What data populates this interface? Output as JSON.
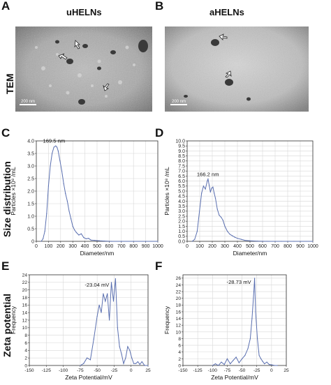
{
  "panels": {
    "A": {
      "letter": "A",
      "title": "uHELNs",
      "scale_text": "200 nm"
    },
    "B": {
      "letter": "B",
      "title": "aHELNs",
      "scale_text": "200 nm"
    },
    "C": {
      "letter": "C"
    },
    "D": {
      "letter": "D"
    },
    "E": {
      "letter": "E"
    },
    "F": {
      "letter": "F"
    }
  },
  "row_labels": {
    "tem": "TEM",
    "size": "Size distribution",
    "zeta": "Zeta potential"
  },
  "colors": {
    "line": "#5a6fb0",
    "grid": "#d8d8d8",
    "axis": "#333333"
  },
  "chart_data": [
    {
      "id": "C",
      "type": "line",
      "xlabel": "Diameter/nm",
      "ylabel": "Particles ×10⁸ /mL",
      "xlim": [
        0,
        1000
      ],
      "ylim": [
        0,
        4.0
      ],
      "xticks": [
        0,
        100,
        200,
        300,
        400,
        500,
        600,
        700,
        800,
        900,
        1000
      ],
      "xtick_labels": [
        "0",
        "100",
        "200",
        "300",
        "400",
        "500",
        "600",
        "700",
        "800",
        "900",
        "1000"
      ],
      "yticks": [
        0,
        0.5,
        1.0,
        1.5,
        2.0,
        2.5,
        3.0,
        3.5,
        4.0
      ],
      "ytick_labels": [
        "0",
        "0.5",
        "1.0",
        "1.5",
        "2.0",
        "2.5",
        "3.0",
        "3.5",
        "4.0"
      ],
      "annotation": "169.5 nm",
      "annotation_at": [
        169.5,
        3.82
      ],
      "x": [
        40,
        55,
        70,
        85,
        100,
        115,
        130,
        145,
        160,
        170,
        180,
        195,
        210,
        225,
        240,
        255,
        270,
        285,
        300,
        315,
        330,
        350,
        370,
        390,
        410,
        430,
        450,
        480,
        520,
        560,
        620,
        700,
        800,
        900,
        1000
      ],
      "y": [
        0.0,
        0.1,
        0.4,
        1.1,
        2.2,
        3.0,
        3.5,
        3.75,
        3.8,
        3.75,
        3.6,
        3.2,
        2.8,
        2.3,
        1.9,
        1.6,
        1.2,
        0.9,
        0.6,
        0.45,
        0.35,
        0.25,
        0.3,
        0.15,
        0.1,
        0.12,
        0.05,
        0.04,
        0.02,
        0.01,
        0.0,
        0.0,
        0.0,
        0.0,
        0.0
      ]
    },
    {
      "id": "D",
      "type": "line",
      "xlabel": "Diameter/nm",
      "ylabel": "Particles ×10⁸ /mL",
      "xlim": [
        0,
        1000
      ],
      "ylim": [
        0,
        10.0
      ],
      "xticks": [
        0,
        100,
        200,
        300,
        400,
        500,
        600,
        700,
        800,
        900,
        1000
      ],
      "xtick_labels": [
        "0",
        "100",
        "200",
        "300",
        "400",
        "500",
        "600",
        "700",
        "800",
        "900",
        "1000"
      ],
      "yticks": [
        0,
        0.5,
        1.0,
        1.5,
        2.0,
        2.5,
        3.0,
        3.5,
        4.0,
        4.5,
        5.0,
        5.5,
        6.0,
        6.5,
        7.0,
        7.5,
        8.0,
        8.5,
        9.0,
        9.5,
        10.0
      ],
      "ytick_labels": [
        "0.0",
        "0.5",
        "1.0",
        "1.5",
        "2.0",
        "2.5",
        "3.0",
        "3.5",
        "4.0",
        "4.5",
        "5.0",
        "5.5",
        "6.0",
        "6.5",
        "7.0",
        "7.5",
        "8.0",
        "8.5",
        "9.0",
        "9.5",
        "10.0"
      ],
      "annotation": "166.2 nm",
      "annotation_at": [
        166.2,
        6.2
      ],
      "x": [
        40,
        60,
        80,
        100,
        115,
        130,
        145,
        160,
        166,
        175,
        185,
        195,
        205,
        215,
        225,
        240,
        255,
        270,
        285,
        300,
        320,
        340,
        360,
        380,
        400,
        430,
        460,
        500,
        560,
        650,
        750,
        850,
        1000
      ],
      "y": [
        0.0,
        0.2,
        1.0,
        3.2,
        4.8,
        5.5,
        5.2,
        6.0,
        6.2,
        5.6,
        4.9,
        5.3,
        5.4,
        4.8,
        4.3,
        3.2,
        2.6,
        2.4,
        2.1,
        1.5,
        1.0,
        0.7,
        0.55,
        0.4,
        0.3,
        0.2,
        0.1,
        0.05,
        0.02,
        0.0,
        0.0,
        0.0,
        0.0
      ]
    },
    {
      "id": "E",
      "type": "line",
      "xlabel": "Zeta Potential/mV",
      "ylabel": "Frequency",
      "xlim": [
        -150,
        25
      ],
      "ylim": [
        0,
        24
      ],
      "xticks": [
        -150,
        -125,
        -100,
        -75,
        -50,
        -25,
        0,
        25
      ],
      "xtick_labels": [
        "-150",
        "-125",
        "-100",
        "-75",
        "-50",
        "-25",
        "0",
        "25"
      ],
      "yticks": [
        0,
        2,
        4,
        6,
        8,
        10,
        12,
        14,
        16,
        18,
        20,
        22,
        24
      ],
      "ytick_labels": [
        "0",
        "2",
        "4",
        "6",
        "8",
        "10",
        "12",
        "14",
        "16",
        "18",
        "20",
        "22",
        "24"
      ],
      "annotation": "-23.04 mV",
      "annotation_at": [
        -23.04,
        22.3
      ],
      "x": [
        -75,
        -70,
        -65,
        -60,
        -55,
        -50,
        -47,
        -44,
        -41,
        -38,
        -35,
        -32,
        -29,
        -26,
        -23,
        -20,
        -17,
        -14,
        -11,
        -8,
        -5,
        -2,
        1,
        4,
        7,
        10,
        13,
        16,
        20,
        25
      ],
      "y": [
        0,
        0.5,
        2,
        1.5,
        7,
        13,
        16,
        14,
        19,
        17,
        19,
        12,
        22,
        17,
        23,
        10,
        5,
        3,
        0.5,
        2,
        5,
        4,
        2,
        0.5,
        0.5,
        1,
        0.3,
        1,
        0,
        0
      ]
    },
    {
      "id": "F",
      "type": "line",
      "xlabel": "Zeta Potential/mV",
      "ylabel": "Frequency",
      "xlim": [
        -150,
        25
      ],
      "ylim": [
        0,
        27
      ],
      "xticks": [
        -150,
        -125,
        -100,
        -75,
        -50,
        -25,
        0,
        25
      ],
      "xtick_labels": [
        "-150",
        "-125",
        "-100",
        "-75",
        "-50",
        "-25",
        "0",
        "25"
      ],
      "yticks": [
        0,
        2,
        4,
        6,
        8,
        10,
        12,
        14,
        16,
        18,
        20,
        22,
        24,
        26
      ],
      "ytick_labels": [
        "0",
        "2",
        "4",
        "6",
        "8",
        "10",
        "12",
        "14",
        "16",
        "18",
        "20",
        "22",
        "24",
        "26"
      ],
      "annotation": "-28.73 mV",
      "annotation_at": [
        -28.73,
        26
      ],
      "x": [
        -100,
        -95,
        -90,
        -85,
        -80,
        -75,
        -70,
        -65,
        -60,
        -55,
        -50,
        -45,
        -40,
        -36,
        -33,
        -30,
        -28.7,
        -27,
        -24,
        -21,
        -18,
        -15,
        -12,
        -8,
        -4,
        0,
        5,
        10
      ],
      "y": [
        0,
        0.5,
        0,
        1,
        0.3,
        2,
        0.5,
        1.5,
        2.5,
        0.8,
        2,
        3,
        5,
        8,
        14,
        22,
        26,
        16,
        8,
        3,
        2,
        1.2,
        0.5,
        1,
        0.3,
        0.2,
        0,
        0
      ]
    }
  ]
}
